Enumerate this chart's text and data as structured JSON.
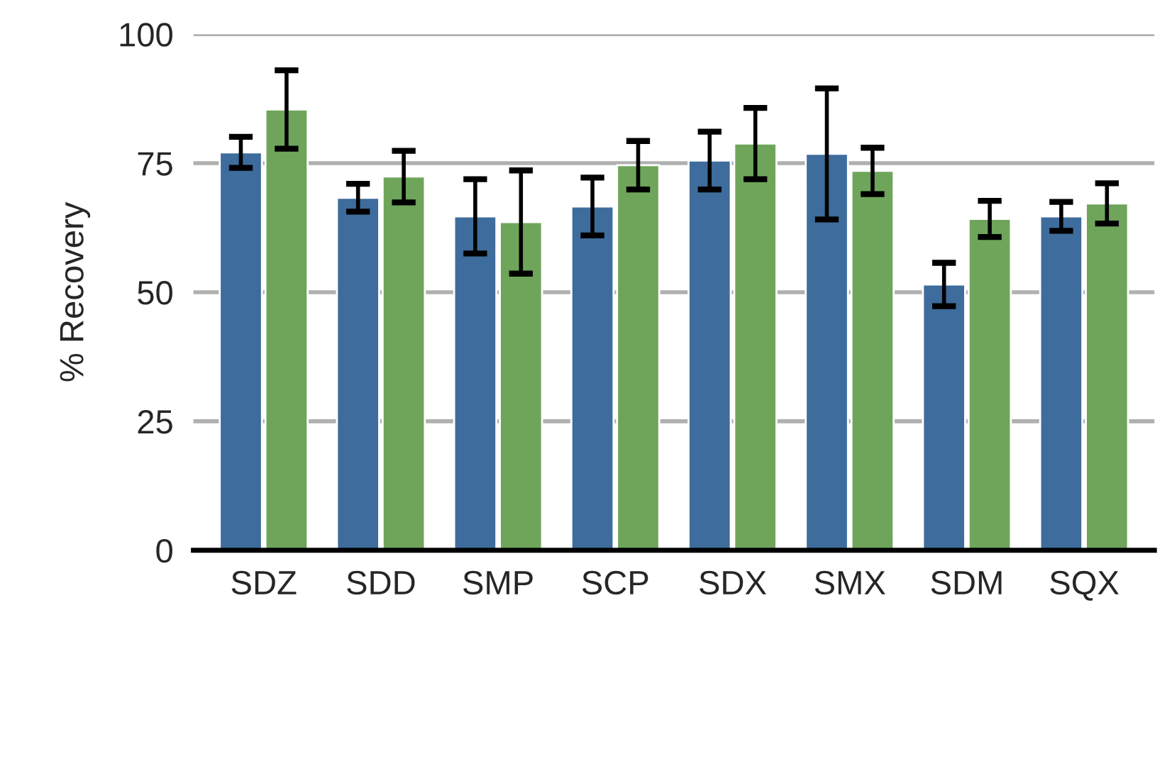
{
  "chart_data": {
    "type": "bar",
    "ylabel": "% Recovery",
    "categories": [
      "SDZ",
      "SDD",
      "SMP",
      "SCP",
      "SDX",
      "SMX",
      "SDM",
      "SQX"
    ],
    "series": [
      {
        "color": "#3e6c9c",
        "values": [
          77.1,
          68.3,
          64.7,
          66.6,
          75.5,
          76.8,
          51.5,
          64.7
        ],
        "errors": [
          3.0,
          2.7,
          7.2,
          5.6,
          5.6,
          12.7,
          4.2,
          2.8
        ]
      },
      {
        "color": "#6ea55a",
        "values": [
          85.4,
          72.4,
          63.6,
          74.6,
          78.8,
          73.5,
          64.2,
          67.2
        ],
        "errors": [
          7.6,
          5.0,
          10.0,
          4.7,
          6.9,
          4.5,
          3.5,
          3.9
        ]
      }
    ],
    "ylim": [
      0,
      100
    ],
    "yticks": [
      0,
      25,
      50,
      75,
      100
    ],
    "grid": "y"
  }
}
